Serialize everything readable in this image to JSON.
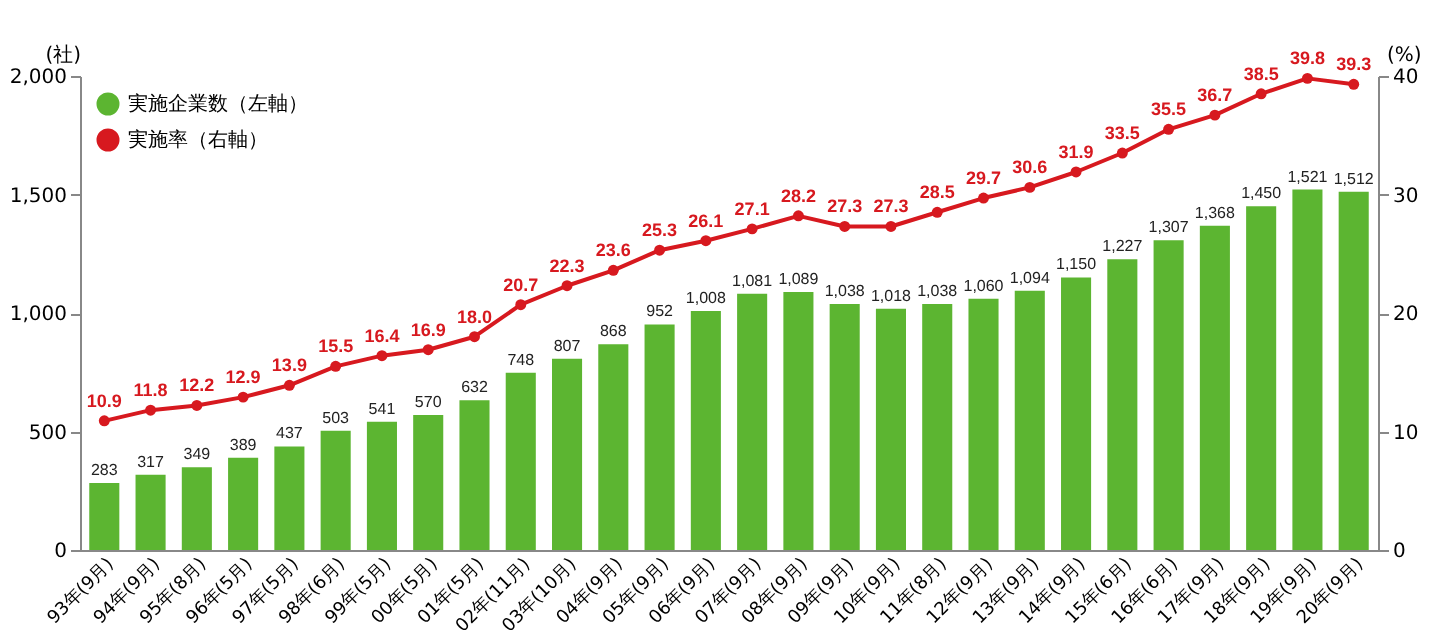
{
  "chart_data": {
    "type": "bar",
    "ylabel": "(社)",
    "y2label": "(%)",
    "legend": "top left",
    "marker": "circle",
    "categories": [
      "93年(9月)",
      "94年(9月)",
      "95年(8月)",
      "96年(5月)",
      "97年(5月)",
      "98年(6月)",
      "99年(5月)",
      "00年(5月)",
      "01年(5月)",
      "02年(11月)",
      "03年(10月)",
      "04年(9月)",
      "05年(9月)",
      "06年(9月)",
      "07年(9月)",
      "08年(9月)",
      "09年(9月)",
      "10年(9月)",
      "11年(8月)",
      "12年(9月)",
      "13年(9月)",
      "14年(9月)",
      "15年(6月)",
      "16年(6月)",
      "17年(9月)",
      "18年(9月)",
      "19年(9月)",
      "20年(9月)"
    ],
    "ylim": [
      0,
      2000
    ],
    "yticks": [
      0,
      500,
      {
        "value": 1000,
        "label": "1,000"
      },
      {
        "value": 1500,
        "label": "1,500"
      },
      {
        "value": 2000,
        "label": "2,000"
      }
    ],
    "y2lim": [
      0,
      40
    ],
    "y2ticks": [
      0,
      10,
      20,
      30,
      40
    ],
    "series": [
      {
        "name": "実施企業数（左軸）",
        "color": "#5cb531",
        "values": [
          283,
          317,
          349,
          389,
          437,
          503,
          541,
          570,
          632,
          748,
          807,
          868,
          952,
          1008,
          1081,
          1089,
          1038,
          1018,
          1038,
          1060,
          1094,
          1150,
          1227,
          1307,
          1368,
          1450,
          1521,
          1512
        ],
        "value_labels": [
          "283",
          "317",
          "349",
          "389",
          "437",
          "503",
          "541",
          "570",
          "632",
          "748",
          "807",
          "868",
          "952",
          "1,008",
          "1,081",
          "1,089",
          "1,038",
          "1,018",
          "1,038",
          "1,060",
          "1,094",
          "1,150",
          "1,227",
          "1,307",
          "1,368",
          "1,450",
          "1,521",
          "1,512"
        ]
      },
      {
        "name": "実施率（右軸）",
        "type": "line",
        "axis": "y2",
        "color": "#d7191f",
        "values": [
          10.9,
          11.8,
          12.2,
          12.9,
          13.9,
          15.5,
          16.4,
          16.9,
          18.0,
          20.7,
          22.3,
          23.6,
          25.3,
          26.1,
          27.1,
          28.2,
          27.3,
          27.3,
          28.5,
          29.7,
          30.6,
          31.9,
          33.5,
          35.5,
          36.7,
          38.5,
          39.8,
          39.3
        ],
        "value_labels": [
          "10.9",
          "11.8",
          "12.2",
          "12.9",
          "13.9",
          "15.5",
          "16.4",
          "16.9",
          "18.0",
          "20.7",
          "22.3",
          "23.6",
          "25.3",
          "26.1",
          "27.1",
          "28.2",
          "27.3",
          "27.3",
          "28.5",
          "29.7",
          "30.6",
          "31.9",
          "33.5",
          "35.5",
          "36.7",
          "38.5",
          "39.8",
          "39.3"
        ]
      }
    ]
  }
}
